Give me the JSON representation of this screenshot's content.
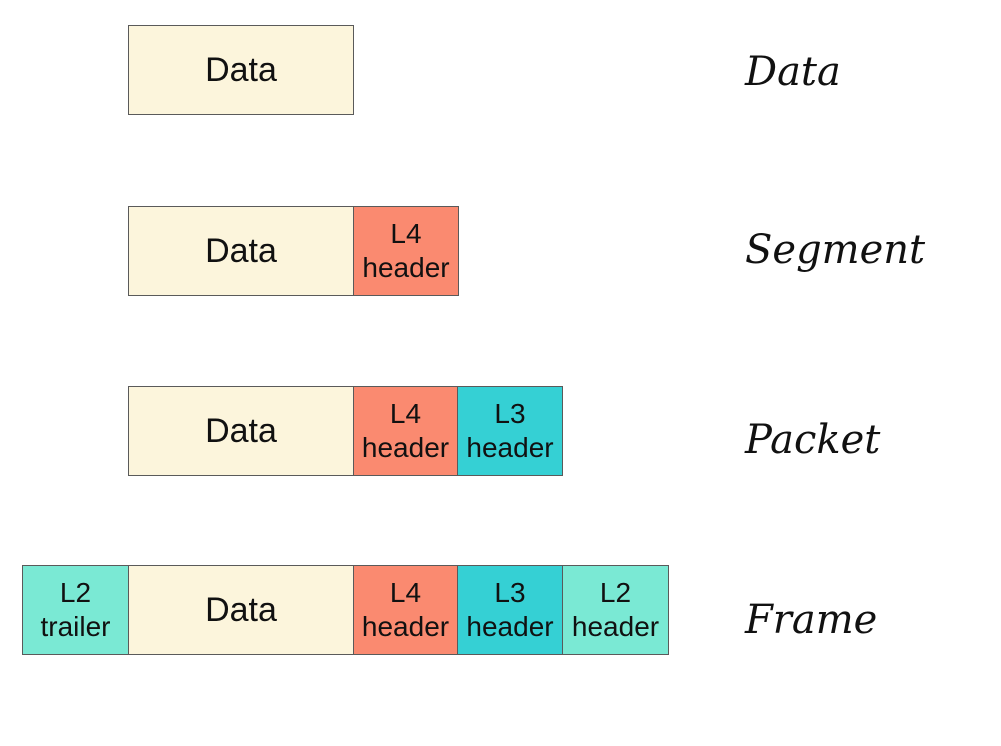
{
  "colors": {
    "data": "#fcf5dc",
    "l4_header": "#fa8a70",
    "l3_header": "#35d0d4",
    "l2": "#7ae9d4",
    "border": "#5a5a5a"
  },
  "rows": [
    {
      "stage": "Data",
      "data_label": "Data"
    },
    {
      "stage": "Segment",
      "data_label": "Data",
      "l4": {
        "line1": "L4",
        "line2": "header"
      }
    },
    {
      "stage": "Packet",
      "data_label": "Data",
      "l4": {
        "line1": "L4",
        "line2": "header"
      },
      "l3": {
        "line1": "L3",
        "line2": "header"
      }
    },
    {
      "stage": "Frame",
      "data_label": "Data",
      "l2_trailer": {
        "line1": "L2",
        "line2": "trailer"
      },
      "l4": {
        "line1": "L4",
        "line2": "header"
      },
      "l3": {
        "line1": "L3",
        "line2": "header"
      },
      "l2_header": {
        "line1": "L2",
        "line2": "header"
      }
    }
  ]
}
